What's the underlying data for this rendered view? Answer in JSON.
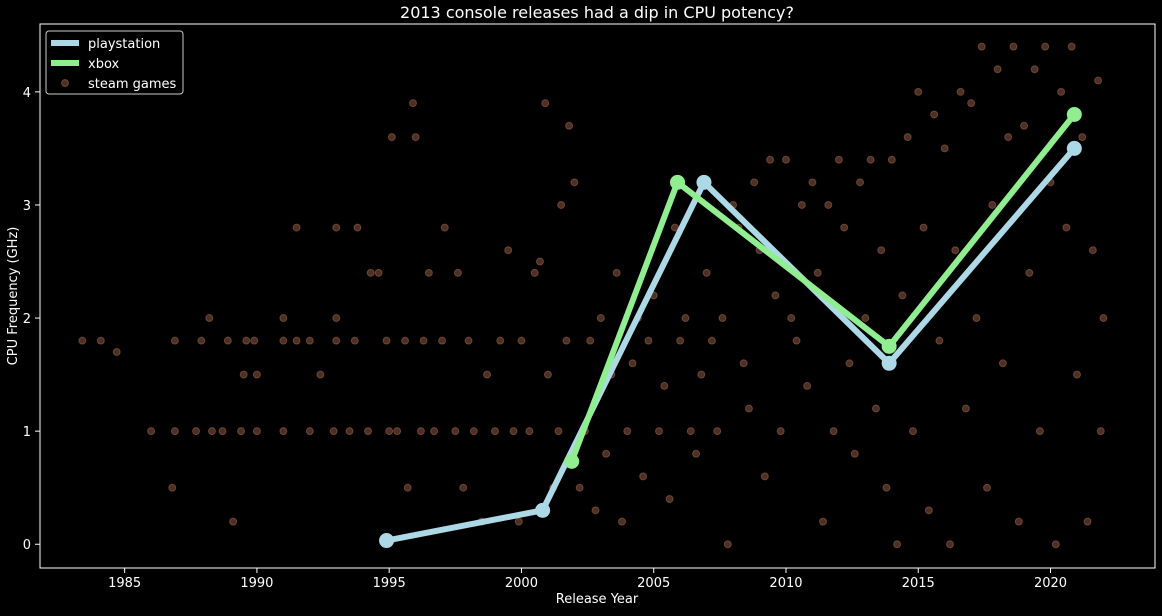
{
  "chart_data": {
    "type": "line",
    "title": "2013 console releases had a dip in CPU potency?",
    "xlabel": "Release Year",
    "ylabel": "CPU Frequency (GHz)",
    "xlim": [
      1981.8,
      1964.0
    ],
    "ylim": [
      -0.21,
      4.6
    ],
    "xticks": [
      1985,
      1990,
      1995,
      2000,
      2005,
      2010,
      2015,
      2020
    ],
    "yticks": [
      0,
      1,
      2,
      3,
      4
    ],
    "grid": false,
    "legend_position": "top-left",
    "background": "#000000",
    "series": [
      {
        "name": "playstation",
        "kind": "line",
        "color": "#add8e6",
        "points": [
          [
            1994.9,
            0.033
          ],
          [
            2000.8,
            0.3
          ],
          [
            2006.9,
            3.2
          ],
          [
            2013.9,
            1.6
          ],
          [
            2020.9,
            3.5
          ]
        ]
      },
      {
        "name": "xbox",
        "kind": "line",
        "color": "#90ee90",
        "points": [
          [
            2001.9,
            0.733
          ],
          [
            2005.9,
            3.2
          ],
          [
            2013.9,
            1.75
          ],
          [
            2020.9,
            3.8
          ]
        ]
      },
      {
        "name": "steam games",
        "kind": "scatter",
        "color": "#ffa07a",
        "alpha": 0.3,
        "points": [
          [
            1983.4,
            1.8
          ],
          [
            1984.1,
            1.8
          ],
          [
            1984.7,
            1.7
          ],
          [
            1986.0,
            1.0
          ],
          [
            1986.9,
            1.8
          ],
          [
            1986.9,
            1.0
          ],
          [
            1986.8,
            0.5
          ],
          [
            1987.7,
            1.0
          ],
          [
            1987.9,
            1.8
          ],
          [
            1988.2,
            2.0
          ],
          [
            1988.3,
            1.0
          ],
          [
            1988.9,
            1.8
          ],
          [
            1988.7,
            1.0
          ],
          [
            1989.1,
            0.2
          ],
          [
            1989.4,
            1.0
          ],
          [
            1989.5,
            1.5
          ],
          [
            1989.6,
            1.8
          ],
          [
            1989.9,
            1.8
          ],
          [
            1990.0,
            1.5
          ],
          [
            1990.0,
            1.0
          ],
          [
            1991.0,
            1.8
          ],
          [
            1991.0,
            2.0
          ],
          [
            1991.0,
            1.0
          ],
          [
            1991.5,
            1.8
          ],
          [
            1991.5,
            2.8
          ],
          [
            1992.0,
            1.0
          ],
          [
            1992.0,
            1.8
          ],
          [
            1992.4,
            1.5
          ],
          [
            1992.9,
            1.0
          ],
          [
            1993.0,
            1.8
          ],
          [
            1993.0,
            2.0
          ],
          [
            1993.0,
            2.8
          ],
          [
            1993.5,
            1.0
          ],
          [
            1993.7,
            1.8
          ],
          [
            1993.8,
            2.8
          ],
          [
            1994.2,
            1.0
          ],
          [
            1994.3,
            2.4
          ],
          [
            1994.6,
            2.4
          ],
          [
            1994.9,
            1.8
          ],
          [
            1995.0,
            1.0
          ],
          [
            1995.1,
            3.6
          ],
          [
            1995.3,
            1.0
          ],
          [
            1995.6,
            1.8
          ],
          [
            1995.7,
            0.5
          ],
          [
            1995.9,
            3.9
          ],
          [
            1996.0,
            3.6
          ],
          [
            1996.2,
            1.0
          ],
          [
            1996.3,
            1.8
          ],
          [
            1996.5,
            2.4
          ],
          [
            1996.7,
            1.0
          ],
          [
            1997.0,
            1.8
          ],
          [
            1997.1,
            2.8
          ],
          [
            1997.5,
            1.0
          ],
          [
            1997.6,
            2.4
          ],
          [
            1997.8,
            0.5
          ],
          [
            1998.0,
            1.8
          ],
          [
            1998.2,
            1.0
          ],
          [
            1998.5,
            0.2
          ],
          [
            1998.7,
            1.5
          ],
          [
            1999.0,
            1.0
          ],
          [
            1999.2,
            1.8
          ],
          [
            1999.5,
            2.6
          ],
          [
            1999.7,
            1.0
          ],
          [
            1999.9,
            0.2
          ],
          [
            2000.0,
            1.8
          ],
          [
            2000.3,
            1.0
          ],
          [
            2000.5,
            2.4
          ],
          [
            2000.7,
            2.5
          ],
          [
            2000.9,
            3.9
          ],
          [
            2001.0,
            1.5
          ],
          [
            2001.2,
            0.5
          ],
          [
            2001.4,
            1.0
          ],
          [
            2001.5,
            3.0
          ],
          [
            2001.7,
            1.8
          ],
          [
            2001.8,
            3.7
          ],
          [
            2002.0,
            3.2
          ],
          [
            2002.2,
            0.5
          ],
          [
            2002.4,
            1.0
          ],
          [
            2002.6,
            1.8
          ],
          [
            2002.8,
            0.3
          ],
          [
            2003.0,
            2.0
          ],
          [
            2003.2,
            0.8
          ],
          [
            2003.4,
            1.5
          ],
          [
            2003.6,
            2.4
          ],
          [
            2003.8,
            0.2
          ],
          [
            2004.0,
            1.0
          ],
          [
            2004.2,
            1.6
          ],
          [
            2004.4,
            2.0
          ],
          [
            2004.6,
            0.6
          ],
          [
            2004.8,
            1.8
          ],
          [
            2005.0,
            2.2
          ],
          [
            2005.2,
            1.0
          ],
          [
            2005.4,
            1.4
          ],
          [
            2005.6,
            0.4
          ],
          [
            2005.8,
            2.8
          ],
          [
            2006.0,
            1.8
          ],
          [
            2006.2,
            2.0
          ],
          [
            2006.4,
            1.0
          ],
          [
            2006.6,
            0.8
          ],
          [
            2006.8,
            1.5
          ],
          [
            2007.0,
            2.4
          ],
          [
            2007.2,
            1.8
          ],
          [
            2007.4,
            1.0
          ],
          [
            2007.6,
            2.0
          ],
          [
            2007.8,
            0.0
          ],
          [
            2008.0,
            3.0
          ],
          [
            2008.2,
            2.8
          ],
          [
            2008.4,
            1.6
          ],
          [
            2008.6,
            1.2
          ],
          [
            2008.8,
            3.2
          ],
          [
            2009.0,
            2.6
          ],
          [
            2009.2,
            0.6
          ],
          [
            2009.4,
            3.4
          ],
          [
            2009.6,
            2.2
          ],
          [
            2009.8,
            1.0
          ],
          [
            2010.0,
            3.4
          ],
          [
            2010.2,
            2.0
          ],
          [
            2010.4,
            1.8
          ],
          [
            2010.6,
            3.0
          ],
          [
            2010.8,
            1.4
          ],
          [
            2011.0,
            3.2
          ],
          [
            2011.2,
            2.4
          ],
          [
            2011.4,
            0.2
          ],
          [
            2011.6,
            3.0
          ],
          [
            2011.8,
            1.0
          ],
          [
            2012.0,
            3.4
          ],
          [
            2012.2,
            2.8
          ],
          [
            2012.4,
            1.6
          ],
          [
            2012.6,
            0.8
          ],
          [
            2012.8,
            3.2
          ],
          [
            2013.0,
            2.0
          ],
          [
            2013.2,
            3.4
          ],
          [
            2013.4,
            1.2
          ],
          [
            2013.6,
            2.6
          ],
          [
            2013.8,
            0.5
          ],
          [
            2014.0,
            3.4
          ],
          [
            2014.2,
            0.0
          ],
          [
            2014.4,
            2.2
          ],
          [
            2014.6,
            3.6
          ],
          [
            2014.8,
            1.0
          ],
          [
            2015.0,
            4.0
          ],
          [
            2015.2,
            2.8
          ],
          [
            2015.4,
            0.3
          ],
          [
            2015.6,
            3.8
          ],
          [
            2015.8,
            1.8
          ],
          [
            2016.0,
            3.5
          ],
          [
            2016.2,
            0.0
          ],
          [
            2016.4,
            2.6
          ],
          [
            2016.6,
            4.0
          ],
          [
            2016.8,
            1.2
          ],
          [
            2017.0,
            3.9
          ],
          [
            2017.2,
            2.0
          ],
          [
            2017.4,
            4.4
          ],
          [
            2017.6,
            0.5
          ],
          [
            2017.8,
            3.0
          ],
          [
            2018.0,
            4.2
          ],
          [
            2018.2,
            1.6
          ],
          [
            2018.4,
            3.6
          ],
          [
            2018.6,
            4.4
          ],
          [
            2018.8,
            0.2
          ],
          [
            2019.0,
            3.7
          ],
          [
            2019.2,
            2.4
          ],
          [
            2019.4,
            4.2
          ],
          [
            2019.6,
            1.0
          ],
          [
            2019.8,
            4.4
          ],
          [
            2020.0,
            3.2
          ],
          [
            2020.2,
            0.0
          ],
          [
            2020.4,
            4.0
          ],
          [
            2020.6,
            2.8
          ],
          [
            2020.8,
            4.4
          ],
          [
            2021.0,
            1.5
          ],
          [
            2021.2,
            3.6
          ],
          [
            2021.4,
            0.2
          ],
          [
            2021.6,
            2.6
          ],
          [
            2021.8,
            4.1
          ],
          [
            2021.9,
            1.0
          ],
          [
            2022.0,
            2.0
          ]
        ]
      }
    ]
  }
}
